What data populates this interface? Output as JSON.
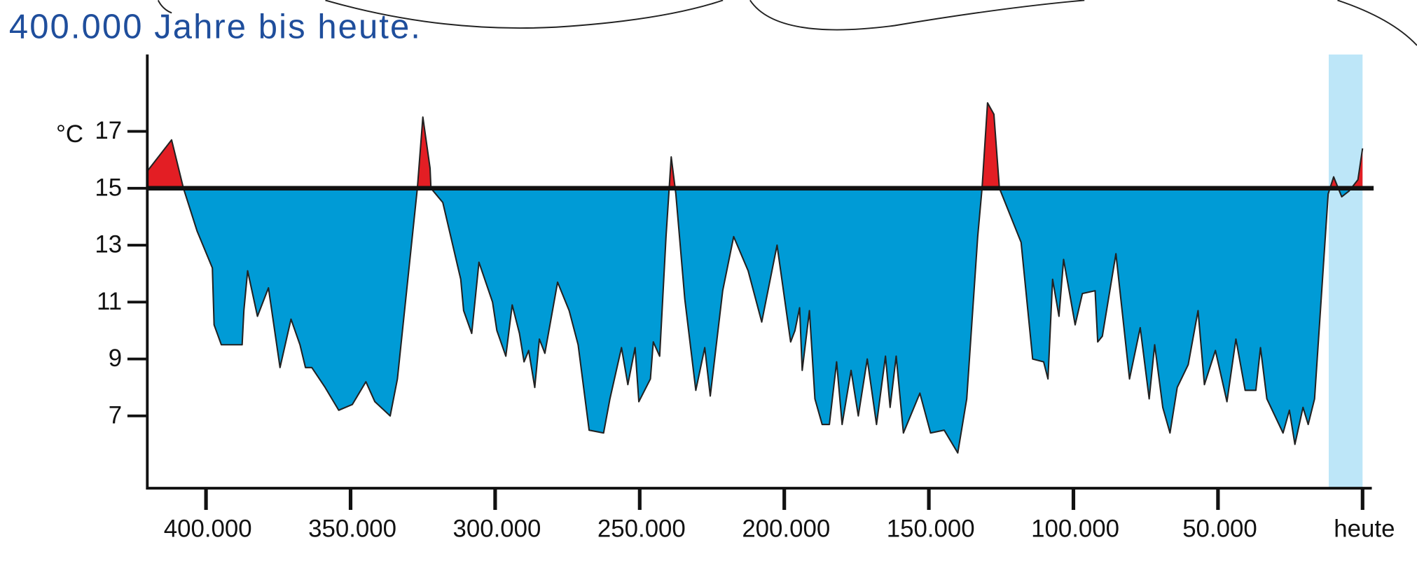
{
  "chart_data": {
    "type": "area",
    "title": "400.000 Jahre bis heute.",
    "y_unit_label": "°C",
    "x": [
      420300,
      411900,
      407800,
      403100,
      397800,
      397200,
      394700,
      387500,
      386900,
      385600,
      382200,
      378400,
      374400,
      370600,
      367500,
      365600,
      363400,
      358800,
      354100,
      349400,
      344700,
      341600,
      336300,
      333800,
      326900,
      325000,
      322500,
      322200,
      318100,
      311900,
      310900,
      308100,
      305600,
      300900,
      299400,
      296300,
      294100,
      291600,
      290000,
      288400,
      286300,
      284700,
      282800,
      278400,
      274400,
      271300,
      267500,
      262500,
      260300,
      256300,
      254100,
      251600,
      250300,
      246300,
      245300,
      243100,
      240900,
      239100,
      237500,
      234400,
      230600,
      227500,
      225600,
      221300,
      217500,
      212500,
      207800,
      202500,
      197800,
      196300,
      194700,
      193800,
      191300,
      189400,
      186900,
      184400,
      181900,
      180000,
      176900,
      174400,
      171300,
      168100,
      165000,
      163400,
      161300,
      158800,
      153100,
      149400,
      144700,
      140000,
      136900,
      133100,
      131600,
      129700,
      127500,
      125600,
      118100,
      114100,
      110300,
      108800,
      107200,
      105000,
      103400,
      99400,
      96900,
      92500,
      91600,
      90000,
      85300,
      80600,
      76900,
      73800,
      71900,
      69100,
      66600,
      64100,
      60300,
      56900,
      54700,
      50900,
      46900,
      43800,
      40600,
      36900,
      35300,
      33100,
      27500,
      25300,
      23400,
      20600,
      18800,
      16600,
      11900,
      10000,
      7200,
      4700,
      1600,
      0
    ],
    "values": [
      15.6,
      16.7,
      15.0,
      13.5,
      12.2,
      10.2,
      9.5,
      9.5,
      10.7,
      12.1,
      10.5,
      11.5,
      8.7,
      10.4,
      9.5,
      8.7,
      8.7,
      8.0,
      7.2,
      7.4,
      8.2,
      7.5,
      7.0,
      8.3,
      15.0,
      17.5,
      15.7,
      15.0,
      14.5,
      11.8,
      10.7,
      9.9,
      12.4,
      11.0,
      10.0,
      9.1,
      10.9,
      9.9,
      8.9,
      9.3,
      8.0,
      9.7,
      9.2,
      11.7,
      10.7,
      9.5,
      6.5,
      6.4,
      7.6,
      9.4,
      8.1,
      9.4,
      7.5,
      8.3,
      9.6,
      9.1,
      13.3,
      16.1,
      14.8,
      11.1,
      7.9,
      9.4,
      7.7,
      11.4,
      13.3,
      12.1,
      10.3,
      13.0,
      9.6,
      10.0,
      10.8,
      8.6,
      10.7,
      7.6,
      6.7,
      6.7,
      8.9,
      6.7,
      8.6,
      7.0,
      9.0,
      6.7,
      9.1,
      7.3,
      9.1,
      6.4,
      7.8,
      6.4,
      6.5,
      5.7,
      7.6,
      13.3,
      15.0,
      18.0,
      17.6,
      15.0,
      13.1,
      9.0,
      8.9,
      8.3,
      11.8,
      10.5,
      12.5,
      10.2,
      11.3,
      11.4,
      9.6,
      9.8,
      12.7,
      8.3,
      10.1,
      7.6,
      9.5,
      7.3,
      6.4,
      8.0,
      8.8,
      10.7,
      8.1,
      9.3,
      7.5,
      9.7,
      7.9,
      7.9,
      9.4,
      7.6,
      6.4,
      7.2,
      6.0,
      7.3,
      6.7,
      7.6,
      14.8,
      15.4,
      14.7,
      14.9,
      15.3,
      16.4
    ],
    "baseline": 15,
    "color_above": "#e31e24",
    "color_below": "#009bd6",
    "line_color": "#222222",
    "highlight": {
      "from": 11700,
      "to": 0,
      "color": "#bde6f8"
    },
    "xlim": [
      420300,
      -3200
    ],
    "ylim": [
      4.46,
      19.7
    ],
    "xticks": [
      {
        "value": 400000,
        "label": "400.000"
      },
      {
        "value": 350000,
        "label": "350.000"
      },
      {
        "value": 300000,
        "label": "300.000"
      },
      {
        "value": 250000,
        "label": "250.000"
      },
      {
        "value": 200000,
        "label": "200.000"
      },
      {
        "value": 150000,
        "label": "150.000"
      },
      {
        "value": 100000,
        "label": "100.000"
      },
      {
        "value": 50000,
        "label": "50.000"
      },
      {
        "value": 0,
        "label": "heute"
      }
    ],
    "yticks": [
      7,
      9,
      11,
      13,
      15,
      17
    ]
  }
}
